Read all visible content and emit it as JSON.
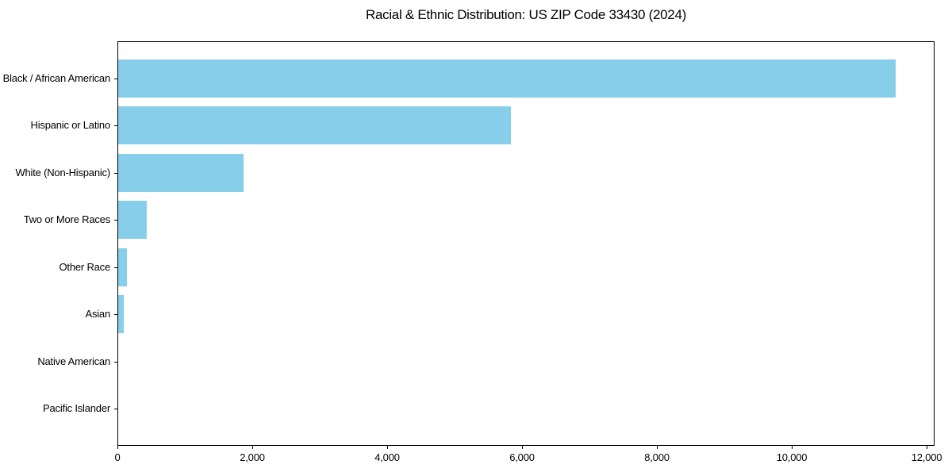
{
  "chart_data": {
    "type": "bar",
    "orientation": "horizontal",
    "title": "Racial & Ethnic Distribution: US ZIP Code 33430 (2024)",
    "categories": [
      "Black / African American",
      "Hispanic or Latino",
      "White (Non-Hispanic)",
      "Two or More Races",
      "Other Race",
      "Asian",
      "Native American",
      "Pacific Islander"
    ],
    "values": [
      11530,
      5820,
      1860,
      425,
      125,
      80,
      0,
      0
    ],
    "xlabel": "",
    "ylabel": "",
    "xlim": [
      0,
      12118
    ],
    "xticks": [
      0,
      2000,
      4000,
      6000,
      8000,
      10000,
      12000
    ],
    "xtick_labels": [
      "0",
      "2,000",
      "4,000",
      "6,000",
      "8,000",
      "10,000",
      "12,000"
    ],
    "bar_color": "#87CEEB",
    "frame_color": "#000000",
    "text_color": "#000000",
    "grid": false,
    "legend": null
  }
}
